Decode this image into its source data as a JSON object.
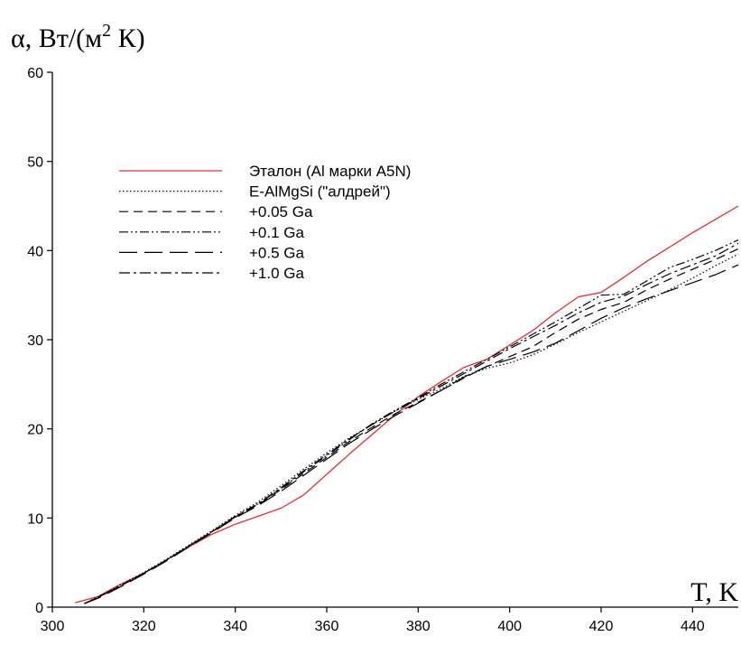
{
  "chart_data": {
    "type": "line",
    "ylabel_main": "α, Вт/(м",
    "ylabel_sup": "2",
    "ylabel_tail": " К)",
    "xlabel": "T, K",
    "xlim": [
      300,
      450
    ],
    "ylim": [
      0,
      60
    ],
    "x_ticks": [
      "300",
      "320",
      "340",
      "360",
      "380",
      "400",
      "420",
      "440"
    ],
    "y_ticks": [
      "0",
      "10",
      "20",
      "30",
      "40",
      "50",
      "60"
    ],
    "grid": false,
    "legend_position": "upper-left",
    "series": [
      {
        "name": "Эталон (Al марки A5N)",
        "color": "#e03030",
        "dash": "solid",
        "x": [
          305,
          310,
          315,
          320,
          325,
          330,
          335,
          340,
          345,
          350,
          355,
          360,
          365,
          370,
          375,
          380,
          385,
          390,
          395,
          400,
          405,
          410,
          415,
          420,
          425,
          430,
          435,
          440,
          445,
          450
        ],
        "y": [
          0.5,
          1.2,
          2.6,
          3.8,
          5.3,
          6.8,
          8.2,
          9.3,
          10.2,
          11.1,
          12.6,
          14.9,
          17.2,
          19.4,
          21.6,
          23.6,
          25.3,
          26.9,
          27.8,
          29.4,
          31.0,
          33.0,
          34.8,
          35.3,
          37.0,
          38.8,
          40.4,
          42.0,
          43.5,
          45.0
        ]
      },
      {
        "name": "E-AlMgSi (\"алдрей\")",
        "color": "#000000",
        "dash": "dotted",
        "x": [
          307,
          310,
          315,
          320,
          325,
          330,
          335,
          340,
          345,
          350,
          355,
          360,
          365,
          370,
          375,
          380,
          385,
          390,
          395,
          400,
          405,
          410,
          415,
          420,
          425,
          430,
          435,
          440,
          445,
          450
        ],
        "y": [
          0.4,
          1.2,
          2.5,
          3.9,
          5.4,
          7.0,
          8.6,
          10.3,
          11.8,
          13.6,
          15.5,
          17.3,
          19.0,
          20.5,
          22.0,
          23.3,
          24.5,
          25.9,
          26.8,
          27.4,
          28.3,
          29.5,
          30.8,
          32.0,
          33.2,
          34.4,
          35.6,
          36.9,
          38.3,
          39.6
        ]
      },
      {
        "name": "+0.05 Ga",
        "color": "#000000",
        "dash": "dash",
        "x": [
          307,
          310,
          315,
          320,
          325,
          330,
          335,
          340,
          345,
          350,
          355,
          360,
          365,
          370,
          375,
          380,
          385,
          390,
          395,
          400,
          405,
          410,
          415,
          420,
          425,
          430,
          435,
          440,
          445,
          450
        ],
        "y": [
          0.4,
          1.1,
          2.4,
          3.8,
          5.3,
          6.9,
          8.5,
          10.1,
          11.5,
          13.2,
          15.0,
          16.8,
          18.6,
          20.2,
          21.7,
          23.0,
          24.3,
          25.7,
          27.0,
          28.1,
          29.2,
          30.8,
          32.3,
          33.4,
          34.2,
          35.6,
          36.8,
          37.9,
          39.0,
          40.2
        ]
      },
      {
        "name": "+0.1 Ga",
        "color": "#000000",
        "dash": "dashdotdot",
        "x": [
          307,
          310,
          315,
          320,
          325,
          330,
          335,
          340,
          345,
          350,
          355,
          360,
          365,
          370,
          375,
          380,
          385,
          390,
          395,
          400,
          405,
          410,
          415,
          420,
          425,
          430,
          435,
          440,
          445,
          450
        ],
        "y": [
          0.4,
          1.1,
          2.4,
          3.8,
          5.3,
          6.9,
          8.5,
          10.2,
          11.6,
          13.3,
          15.2,
          17.0,
          18.8,
          20.6,
          22.1,
          23.5,
          25.0,
          26.4,
          27.8,
          29.2,
          30.6,
          32.0,
          33.5,
          35.0,
          35.1,
          36.6,
          38.1,
          39.0,
          40.0,
          41.2
        ]
      },
      {
        "name": "+0.5 Ga",
        "color": "#000000",
        "dash": "longdash",
        "x": [
          307,
          310,
          315,
          320,
          325,
          330,
          335,
          340,
          345,
          350,
          355,
          360,
          365,
          370,
          375,
          380,
          385,
          390,
          395,
          400,
          405,
          410,
          415,
          420,
          425,
          430,
          435,
          440,
          445,
          450
        ],
        "y": [
          0.4,
          1.0,
          2.3,
          3.7,
          5.2,
          6.8,
          8.4,
          10.0,
          11.4,
          13.0,
          14.8,
          16.6,
          18.4,
          20.0,
          21.5,
          22.9,
          24.3,
          25.8,
          27.0,
          27.8,
          28.6,
          29.6,
          31.0,
          32.4,
          33.6,
          34.6,
          35.5,
          36.4,
          37.3,
          38.4
        ]
      },
      {
        "name": "+1.0 Ga",
        "color": "#000000",
        "dash": "dashdot",
        "x": [
          307,
          310,
          315,
          320,
          325,
          330,
          335,
          340,
          345,
          350,
          355,
          360,
          365,
          370,
          375,
          380,
          385,
          390,
          395,
          400,
          405,
          410,
          415,
          420,
          425,
          430,
          435,
          440,
          445,
          450
        ],
        "y": [
          0.4,
          1.1,
          2.4,
          3.8,
          5.3,
          6.9,
          8.5,
          10.1,
          11.6,
          13.4,
          15.3,
          17.1,
          18.9,
          20.5,
          22.0,
          23.4,
          24.8,
          26.2,
          27.6,
          29.0,
          30.3,
          31.6,
          33.0,
          34.2,
          34.9,
          36.2,
          37.4,
          38.4,
          39.4,
          40.8
        ]
      }
    ]
  }
}
